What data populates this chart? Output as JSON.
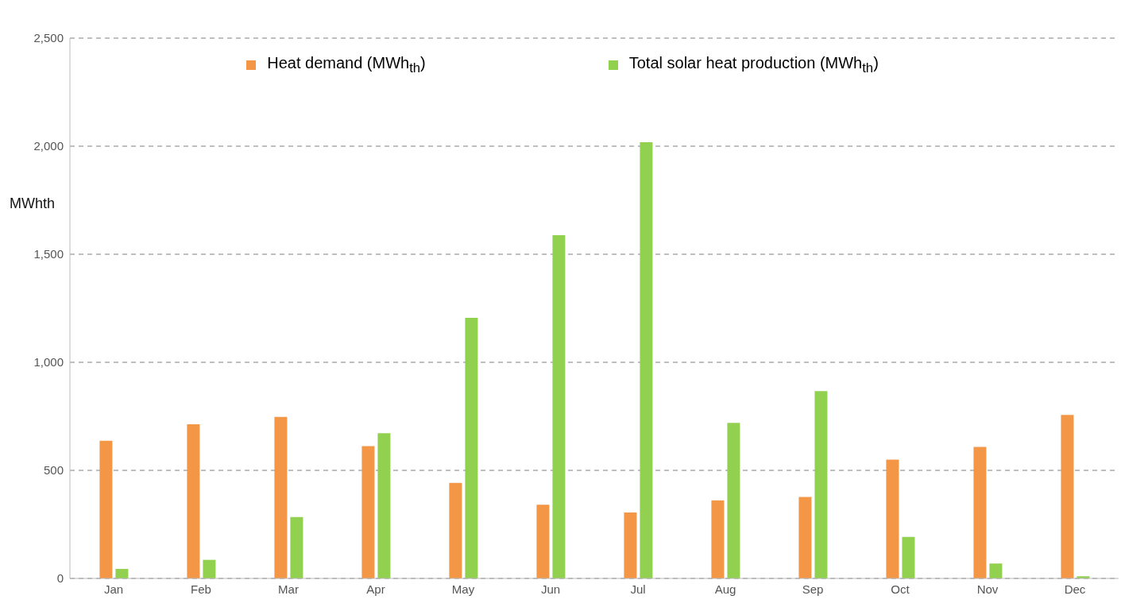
{
  "chart_data": {
    "type": "bar",
    "ylabel": "MWhth",
    "categories": [
      "Jan",
      "Feb",
      "Mar",
      "Apr",
      "May",
      "Jun",
      "Jul",
      "Aug",
      "Sep",
      "Oct",
      "Nov",
      "Dec"
    ],
    "series": [
      {
        "name": "Heat demand (MWh$_{th}$)",
        "color": "#f39646",
        "values": [
          637,
          713,
          747,
          612,
          442,
          341,
          305,
          361,
          377,
          550,
          608,
          756
        ]
      },
      {
        "name": "Total solar heat production (MWh$_{th}$)",
        "color": "#92d050",
        "values": [
          44,
          86,
          284,
          672,
          1206,
          1588,
          2018,
          720,
          867,
          192,
          69,
          10
        ]
      }
    ],
    "ylim": [
      0,
      2500
    ],
    "yticks": [
      0,
      500,
      {
        "value": 1000,
        "label": "1,000"
      },
      {
        "value": 1500,
        "label": "1,500"
      },
      {
        "value": 2000,
        "label": "2,000"
      },
      {
        "value": 2500,
        "label": "2,500"
      }
    ],
    "grid": "y",
    "legend": "top"
  }
}
